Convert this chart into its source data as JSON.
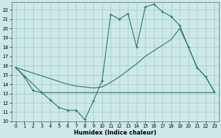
{
  "xlabel": "Humidex (Indice chaleur)",
  "bg_color": "#cce8e8",
  "grid_color": "#aacccc",
  "line_color": "#2a7a6a",
  "xlim": [
    -0.5,
    23.5
  ],
  "ylim": [
    10,
    22.8
  ],
  "yticks": [
    10,
    11,
    12,
    13,
    14,
    15,
    16,
    17,
    18,
    19,
    20,
    21,
    22
  ],
  "xticks": [
    0,
    1,
    2,
    3,
    4,
    5,
    6,
    7,
    8,
    9,
    10,
    11,
    12,
    13,
    14,
    15,
    16,
    17,
    18,
    19,
    20,
    21,
    22,
    23
  ],
  "series1_x": [
    0,
    1,
    2,
    3,
    4,
    5,
    6,
    7,
    8,
    9,
    10,
    11,
    12,
    13,
    14,
    15,
    16,
    17,
    18,
    19,
    20,
    21,
    22,
    23
  ],
  "series1_y": [
    15.8,
    14.8,
    13.3,
    13.1,
    12.3,
    11.5,
    11.2,
    11.2,
    10.2,
    12.2,
    14.4,
    21.5,
    21.0,
    21.6,
    18.0,
    22.3,
    22.6,
    21.8,
    21.3,
    20.3,
    18.0,
    15.8,
    14.8,
    13.2
  ],
  "series2_x": [
    0,
    1,
    2,
    3,
    4,
    5,
    6,
    7,
    8,
    9,
    10,
    11,
    12,
    13,
    14,
    15,
    16,
    17,
    18,
    19,
    20,
    21,
    22,
    23
  ],
  "series2_y": [
    15.8,
    15.5,
    15.2,
    14.9,
    14.6,
    14.3,
    14.0,
    13.8,
    13.7,
    13.6,
    13.7,
    14.2,
    14.8,
    15.5,
    16.2,
    17.0,
    17.6,
    18.2,
    18.8,
    20.0,
    18.0,
    15.8,
    14.8,
    13.2
  ],
  "series3_x": [
    0,
    3,
    23
  ],
  "series3_y": [
    15.8,
    13.1,
    13.1
  ]
}
